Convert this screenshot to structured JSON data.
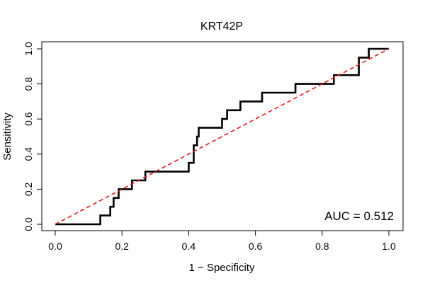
{
  "chart_data": {
    "type": "line",
    "title": "KRT42P",
    "xlabel": "1 − Specificity",
    "ylabel": "Sensitivity",
    "xlim": [
      0.0,
      1.0
    ],
    "ylim": [
      0.0,
      1.0
    ],
    "x_ticks": [
      "0.0",
      "0.2",
      "0.4",
      "0.6",
      "0.8",
      "1.0"
    ],
    "y_ticks": [
      "0.0",
      "0.2",
      "0.4",
      "0.6",
      "0.8",
      "1.0"
    ],
    "grid": false,
    "annotation": "AUC = 0.512",
    "series": [
      {
        "style": "step",
        "color": "#000000",
        "x": [
          0.0,
          0.135,
          0.135,
          0.165,
          0.165,
          0.175,
          0.175,
          0.19,
          0.19,
          0.23,
          0.23,
          0.27,
          0.27,
          0.4,
          0.4,
          0.415,
          0.415,
          0.425,
          0.425,
          0.43,
          0.43,
          0.44,
          0.44,
          0.5,
          0.5,
          0.515,
          0.515,
          0.555,
          0.555,
          0.62,
          0.62,
          0.72,
          0.72,
          0.835,
          0.835,
          0.91,
          0.91,
          0.94,
          0.94,
          1.0
        ],
        "y": [
          0.0,
          0.0,
          0.05,
          0.05,
          0.1,
          0.1,
          0.15,
          0.15,
          0.2,
          0.2,
          0.25,
          0.25,
          0.3,
          0.3,
          0.35,
          0.35,
          0.45,
          0.45,
          0.5,
          0.5,
          0.55,
          0.55,
          0.55,
          0.55,
          0.6,
          0.6,
          0.65,
          0.65,
          0.7,
          0.7,
          0.75,
          0.75,
          0.8,
          0.8,
          0.85,
          0.85,
          0.95,
          0.95,
          1.0,
          1.0
        ]
      },
      {
        "style": "dashed",
        "color": "#e31a1c",
        "x": [
          0.0,
          1.0
        ],
        "y": [
          0.0,
          1.0
        ]
      }
    ]
  }
}
